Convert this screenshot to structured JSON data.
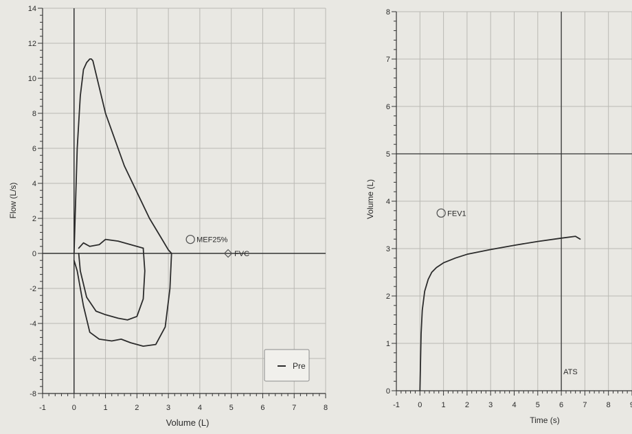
{
  "colors": {
    "paper": "#e9e8e3",
    "grid": "#b9b8b3",
    "axis": "#333333",
    "trace": "#2b2b2b",
    "marker": "#555555"
  },
  "chart_data": [
    {
      "type": "line",
      "title": "",
      "xlabel": "Volume (L)",
      "ylabel": "Flow (L/s)",
      "xlim": [
        -1,
        8
      ],
      "ylim": [
        -8,
        14
      ],
      "xticks": [
        "-1",
        "0",
        "1",
        "2",
        "3",
        "4",
        "5",
        "6",
        "7",
        "8"
      ],
      "yticks": [
        "-8",
        "-6",
        "-4",
        "-2",
        "0",
        "2",
        "4",
        "6",
        "8",
        "10",
        "12",
        "14"
      ],
      "grid": true,
      "legend": {
        "position": "bottom-right",
        "entries": [
          "Pre"
        ]
      },
      "series": [
        {
          "name": "Pre",
          "x": [
            0.0,
            0.05,
            0.1,
            0.2,
            0.3,
            0.4,
            0.5,
            0.55,
            0.6,
            0.8,
            1.0,
            1.3,
            1.6,
            2.0,
            2.4,
            2.8,
            3.0,
            3.1
          ],
          "y": [
            0.0,
            3.0,
            6.0,
            9.0,
            10.5,
            10.9,
            11.1,
            11.1,
            11.0,
            9.5,
            8.0,
            6.5,
            5.0,
            3.5,
            2.0,
            0.8,
            0.2,
            0.0
          ]
        },
        {
          "x": [
            3.1,
            3.05,
            2.9,
            2.6,
            2.2,
            1.8,
            1.5,
            1.2,
            0.8,
            0.5,
            0.3,
            0.1,
            0.0
          ],
          "y": [
            0.0,
            -2.0,
            -4.2,
            -5.2,
            -5.3,
            -5.1,
            -4.9,
            -5.0,
            -4.9,
            -4.5,
            -3.0,
            -1.0,
            -0.4
          ]
        },
        {
          "x": [
            0.15,
            0.3,
            0.5,
            0.8,
            1.0,
            1.4,
            1.8,
            2.2
          ],
          "y": [
            0.3,
            0.6,
            0.4,
            0.5,
            0.8,
            0.7,
            0.5,
            0.3
          ]
        },
        {
          "x": [
            2.2,
            2.25,
            2.2,
            2.0,
            1.7,
            1.4,
            1.0,
            0.7,
            0.4,
            0.2,
            0.15
          ],
          "y": [
            0.3,
            -1.0,
            -2.6,
            -3.6,
            -3.8,
            -3.7,
            -3.5,
            -3.3,
            -2.5,
            -1.0,
            0.0
          ]
        }
      ],
      "markers": [
        {
          "label": "MEF25%",
          "shape": "circle",
          "x": 3.7,
          "y": 0.8
        },
        {
          "label": "FVC",
          "shape": "diamond",
          "x": 4.9,
          "y": 0.0
        }
      ]
    },
    {
      "type": "line",
      "title": "",
      "xlabel": "Time (s)",
      "ylabel": "Volume (L)",
      "xlim": [
        -1,
        9
      ],
      "ylim": [
        0,
        8
      ],
      "xticks": [
        "-1",
        "0",
        "1",
        "2",
        "3",
        "4",
        "5",
        "6",
        "7",
        "8",
        "9"
      ],
      "yticks": [
        "0",
        "1",
        "2",
        "3",
        "4",
        "5",
        "6",
        "7",
        "8"
      ],
      "grid": true,
      "series": [
        {
          "x": [
            0.0,
            0.02,
            0.05,
            0.1,
            0.2,
            0.35,
            0.5,
            0.7,
            1.0,
            1.5,
            2.0,
            3.0,
            4.0,
            5.0,
            6.0,
            6.6,
            6.8
          ],
          "y": [
            0.0,
            0.5,
            1.2,
            1.7,
            2.1,
            2.35,
            2.5,
            2.6,
            2.7,
            2.8,
            2.88,
            2.98,
            3.07,
            3.15,
            3.22,
            3.26,
            3.2
          ]
        }
      ],
      "markers": [
        {
          "label": "FEV1",
          "shape": "circle",
          "x": 0.9,
          "y": 3.75
        }
      ],
      "reference_lines": {
        "horizontal_y": 5,
        "vertical_x": 6,
        "vertical_label": "ATS"
      }
    }
  ]
}
